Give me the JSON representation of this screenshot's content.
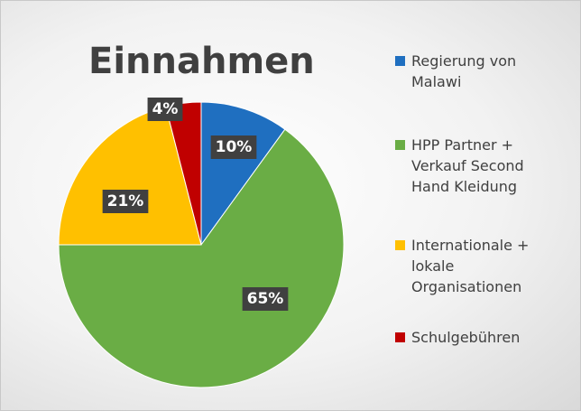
{
  "chart_data": {
    "type": "pie",
    "title": "Einnahmen",
    "categories": [
      "Regierung von Malawi",
      "HPP Partner + Verkauf Second Hand Kleidung",
      "Internationale + lokale Organisationen",
      "Schulgebühren"
    ],
    "values": [
      10,
      65,
      21,
      4
    ],
    "value_labels": [
      "10%",
      "65%",
      "21%",
      "4%"
    ],
    "colors": [
      "#1f6fc0",
      "#6aad45",
      "#ffc000",
      "#c00000"
    ],
    "legend": "right"
  }
}
